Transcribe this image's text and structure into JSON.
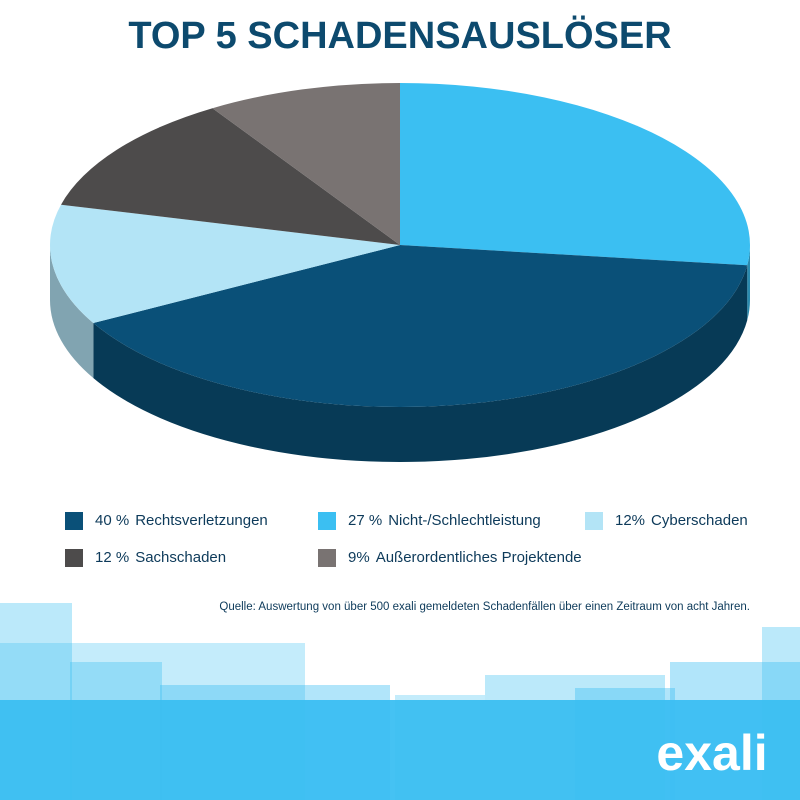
{
  "chart_data": {
    "type": "pie",
    "title": "TOP 5 SCHADENSAUSLÖSER",
    "categories": [
      "Rechtsverletzungen",
      "Nicht-/Schlechtleistung",
      "Cyberschaden",
      "Sachschaden",
      "Außerordentliches Projektende"
    ],
    "values": [
      40,
      27,
      12,
      12,
      9
    ],
    "value_labels": [
      "40 %",
      "27 %",
      "12%",
      "12 %",
      "9%"
    ],
    "colors": [
      "#0a5078",
      "#3bbff2",
      "#b3e4f6",
      "#4d4b4b",
      "#797372"
    ],
    "source": "Quelle: Auswertung von über 500 exali gemeldeten Schadenfällen über einen Zeitraum von acht Jahren.",
    "logo": "exali"
  }
}
